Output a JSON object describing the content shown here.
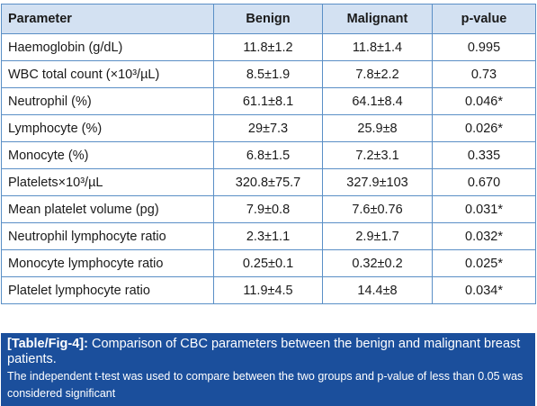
{
  "table": {
    "headers": [
      "Parameter",
      "Benign",
      "Malignant",
      "p-value"
    ],
    "rows": [
      [
        "Haemoglobin (g/dL)",
        "11.8±1.2",
        "11.8±1.4",
        "0.995"
      ],
      [
        "WBC total count (×10³/µL)",
        "8.5±1.9",
        "7.8±2.2",
        "0.73"
      ],
      [
        "Neutrophil (%)",
        "61.1±8.1",
        "64.1±8.4",
        "0.046*"
      ],
      [
        "Lymphocyte (%)",
        "29±7.3",
        "25.9±8",
        "0.026*"
      ],
      [
        "Monocyte (%)",
        "6.8±1.5",
        "7.2±3.1",
        "0.335"
      ],
      [
        "Platelets×10³/µL",
        "320.8±75.7",
        "327.9±103",
        "0.670"
      ],
      [
        "Mean platelet volume (pg)",
        "7.9±0.8",
        "7.6±0.76",
        "0.031*"
      ],
      [
        "Neutrophil lymphocyte ratio",
        "2.3±1.1",
        "2.9±1.7",
        "0.032*"
      ],
      [
        "Monocyte lymphocyte ratio",
        "0.25±0.1",
        "0.32±0.2",
        "0.025*"
      ],
      [
        "Platelet lymphocyte ratio",
        "11.9±4.5",
        "14.4±8",
        "0.034*"
      ]
    ]
  },
  "caption": {
    "label": "[Table/Fig-4]:",
    "title": " Comparison of CBC parameters between the benign and malignant breast patients.",
    "note": "The independent t-test was used to compare between the two groups and p-value of less than 0.05 was considered significant"
  },
  "colors": {
    "header_bg": "#d3e1f2",
    "border": "#5a8fc6",
    "caption_bg": "#1b4f9c"
  }
}
